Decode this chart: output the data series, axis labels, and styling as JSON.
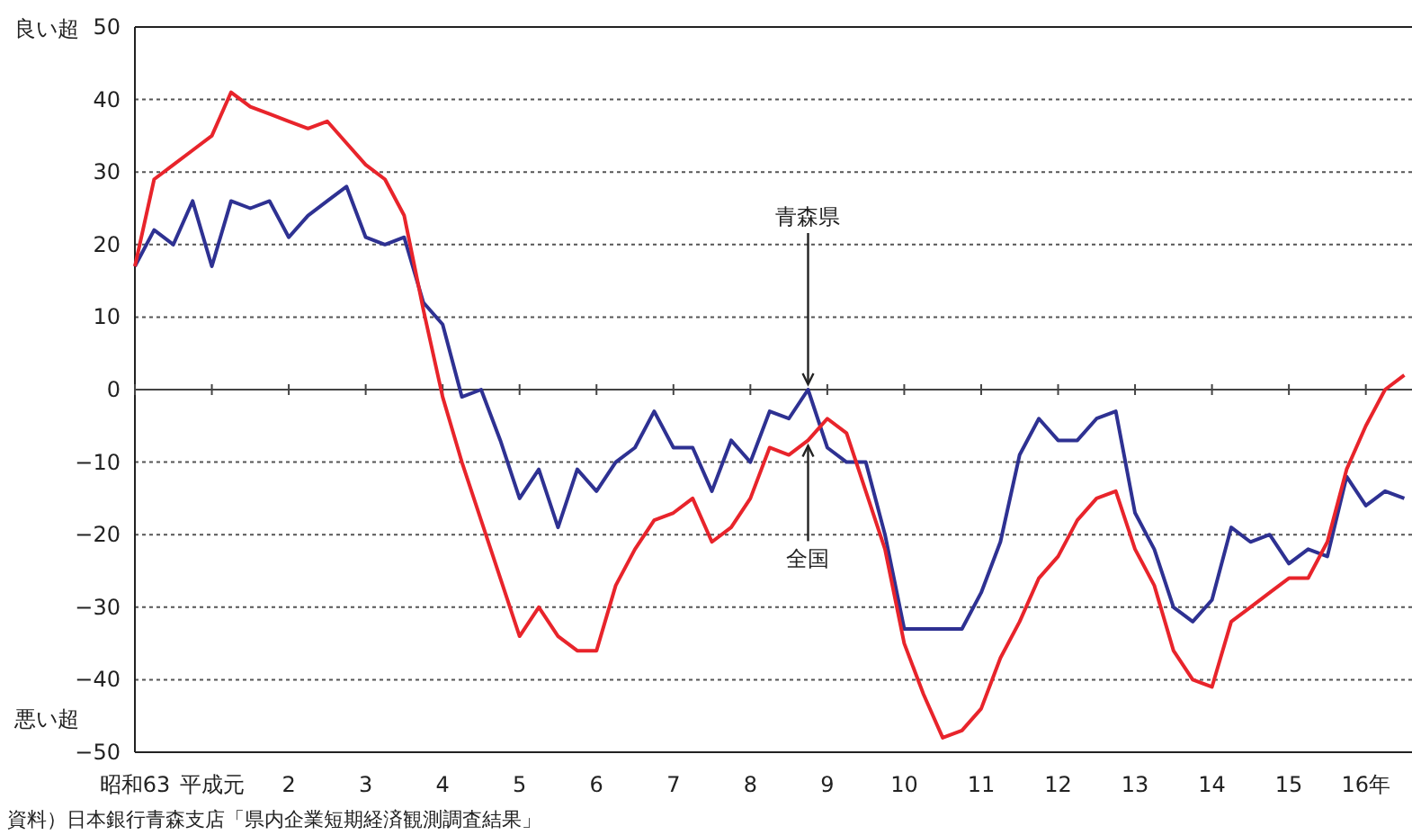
{
  "chart_data": {
    "type": "line",
    "x": [
      0,
      0.25,
      0.5,
      0.75,
      1,
      1.25,
      1.5,
      1.75,
      2,
      2.25,
      2.5,
      2.75,
      3,
      3.25,
      3.5,
      3.75,
      4,
      4.25,
      4.5,
      4.75,
      5,
      5.25,
      5.5,
      5.75,
      6,
      6.25,
      6.5,
      6.75,
      7,
      7.25,
      7.5,
      7.75,
      8,
      8.25,
      8.5,
      8.75,
      9,
      9.25,
      9.5,
      9.75,
      10,
      10.25,
      10.5,
      10.75,
      11,
      11.25,
      11.5,
      11.75,
      12,
      12.25,
      12.5,
      12.75,
      13,
      13.25,
      13.5,
      13.75,
      14,
      14.25,
      14.5,
      14.75,
      15,
      15.25,
      15.5,
      15.75,
      16,
      16.25,
      16.5
    ],
    "series": [
      {
        "color": "#2e3192",
        "values": [
          17,
          22,
          20,
          26,
          17,
          26,
          25,
          26,
          21,
          24,
          26,
          28,
          21,
          20,
          21,
          12,
          9,
          -1,
          0,
          -7,
          -15,
          -11,
          -19,
          -11,
          -14,
          -10,
          -8,
          -3,
          -8,
          -8,
          -14,
          -7,
          -10,
          -3,
          -4,
          0,
          -8,
          -10,
          -10,
          -20,
          -33,
          -33,
          -33,
          -33,
          -28,
          -21,
          -9,
          -4,
          -7,
          -7,
          -4,
          -3,
          -17,
          -22,
          -30,
          -32,
          -29,
          -19,
          -21,
          -20,
          -24,
          -22,
          -23,
          -12,
          -16,
          -14,
          -15
        ]
      },
      {
        "color": "#e8242b",
        "values": [
          17,
          29,
          31,
          33,
          35,
          41,
          39,
          38,
          37,
          36,
          37,
          34,
          31,
          29,
          24,
          11,
          -1,
          -10,
          -18,
          -26,
          -34,
          -30,
          -34,
          -36,
          -36,
          -27,
          -22,
          -18,
          -17,
          -15,
          -21,
          -19,
          -15,
          -8,
          -9,
          -7,
          -4,
          -6,
          -14,
          -22,
          -35,
          -42,
          -48,
          -47,
          -44,
          -37,
          -32,
          -26,
          -23,
          -18,
          -15,
          -14,
          -22,
          -27,
          -36,
          -40,
          -41,
          -32,
          -30,
          -28,
          -26,
          -26,
          -21,
          -11,
          -5,
          0,
          2
        ]
      }
    ],
    "xlim": [
      0,
      16.6
    ],
    "xticks": [
      {
        "value": 0,
        "label": "昭和63"
      },
      {
        "value": 1,
        "label": "平成元"
      },
      2,
      3,
      4,
      5,
      6,
      7,
      8,
      9,
      10,
      11,
      12,
      13,
      14,
      15,
      {
        "value": 16,
        "label": "16年"
      }
    ],
    "ylim": [
      -50,
      50
    ],
    "yticks": [
      -50,
      -40,
      -30,
      -20,
      -10,
      0,
      10,
      20,
      30,
      40,
      50
    ],
    "grid": "y",
    "line_style": "solid",
    "annotations": [
      "良い超",
      "悪い超",
      "資料）日本銀行青森支店「県内企業短期経済観測調査結果」",
      {
        "text": "青森県",
        "x": 8.75,
        "y": 0
      },
      {
        "text": "全国",
        "x": 8.75,
        "y": -7
      }
    ]
  }
}
